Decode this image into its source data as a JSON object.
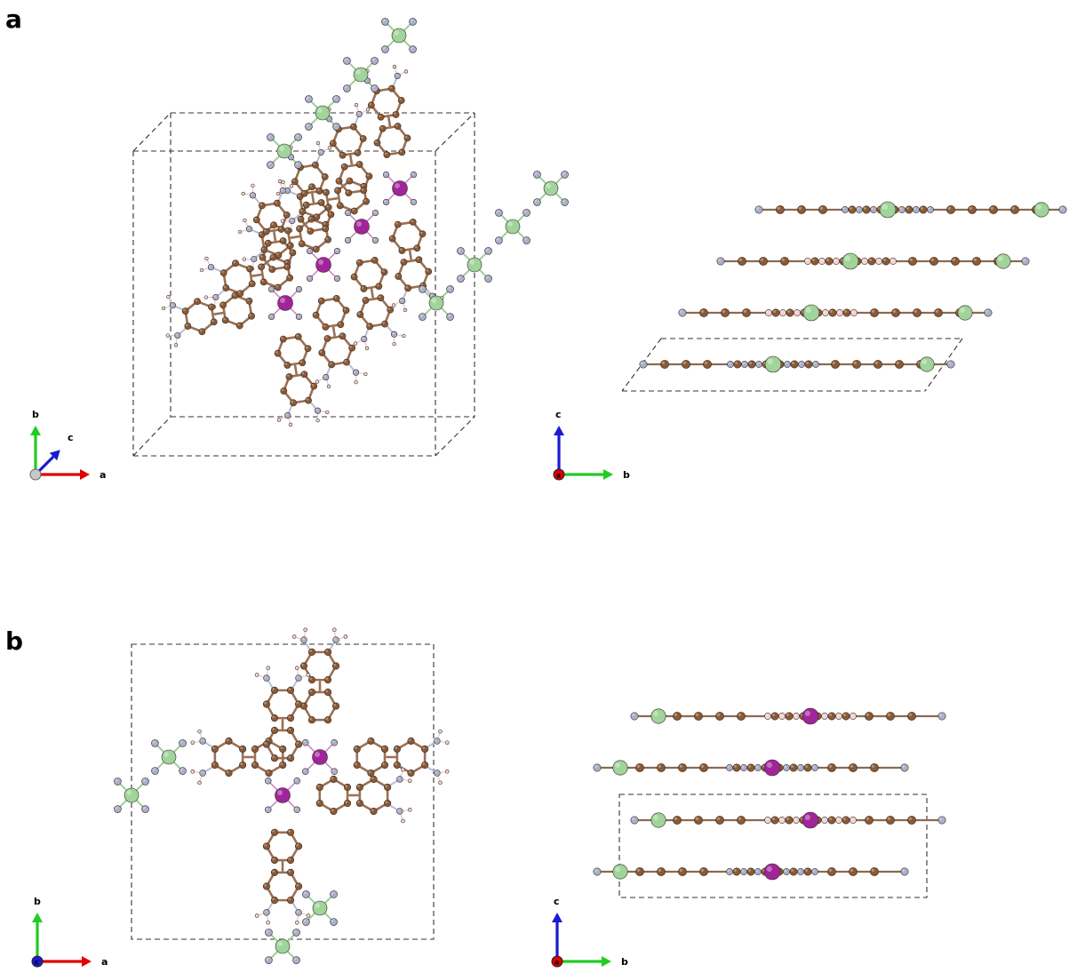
{
  "panels": [
    {
      "id": "a",
      "label": "a",
      "views": [
        {
          "axes": {
            "up": "b",
            "right": "a",
            "out": "c"
          }
        },
        {
          "axes": {
            "up": "c",
            "right": "b",
            "center": "a"
          }
        }
      ]
    },
    {
      "id": "b",
      "label": "b",
      "views": [
        {
          "axes": {
            "up": "b",
            "right": "a",
            "center": "c"
          }
        },
        {
          "axes": {
            "up": "c",
            "right": "b",
            "center": "a"
          }
        }
      ]
    }
  ],
  "colors": {
    "carbon": "#8b5a35",
    "nitrogen": "#a8b0cc",
    "hydrogen": "#f2d4d4",
    "metal_green": "#9fd49a",
    "metal_purple": "#a0259a",
    "cell_edge": "#333333",
    "axis_x": "#e00000",
    "axis_y": "#22cc22",
    "axis_z": "#1a1ad0"
  }
}
